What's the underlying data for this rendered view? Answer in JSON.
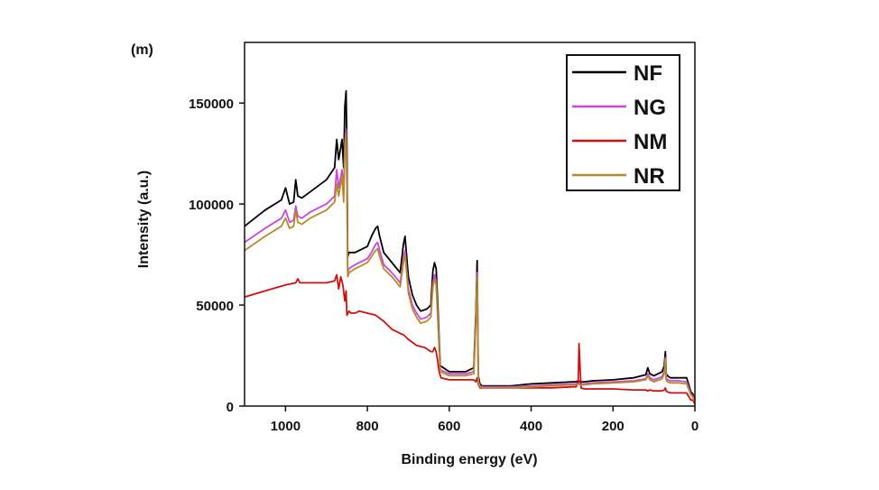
{
  "panel_label": "(m)",
  "chart_data": {
    "type": "line",
    "xlabel": "Binding energy (eV)",
    "ylabel": "Intensity (a.u.)",
    "xlim": [
      1100,
      0
    ],
    "ylim": [
      0,
      180000
    ],
    "x_reversed": true,
    "x_ticks": [
      1000,
      800,
      600,
      400,
      200,
      0
    ],
    "y_ticks": [
      0,
      50000,
      100000,
      150000
    ],
    "grid": false,
    "legend_placement": "top-right",
    "series": [
      {
        "name": "NF",
        "color": "#000000",
        "x": [
          1100,
          1050,
          1010,
          1000,
          990,
          980,
          975,
          970,
          960,
          940,
          900,
          880,
          875,
          870,
          862,
          858,
          855,
          852,
          850,
          848,
          845,
          830,
          800,
          790,
          780,
          775,
          770,
          760,
          740,
          720,
          712,
          708,
          700,
          690,
          680,
          670,
          655,
          645,
          640,
          636,
          632,
          628,
          622,
          600,
          580,
          560,
          540,
          535,
          532,
          529,
          525,
          520,
          500,
          450,
          400,
          350,
          300,
          290,
          285,
          280,
          270,
          250,
          200,
          150,
          120,
          115,
          110,
          100,
          80,
          75,
          72,
          70,
          67,
          60,
          40,
          20,
          10,
          5,
          0
        ],
        "y": [
          89000,
          97000,
          102000,
          108000,
          100000,
          101000,
          112000,
          104000,
          103000,
          106000,
          112000,
          118000,
          132000,
          122000,
          132000,
          118000,
          148000,
          156000,
          128000,
          74000,
          76000,
          76000,
          79000,
          84000,
          88000,
          89000,
          84000,
          76000,
          71000,
          66000,
          80000,
          84000,
          64000,
          55000,
          50000,
          47000,
          48000,
          50000,
          67000,
          71000,
          68000,
          50000,
          20000,
          17000,
          17000,
          17000,
          19000,
          46000,
          72000,
          15000,
          11000,
          10000,
          10000,
          10000,
          11000,
          11500,
          12000,
          12000,
          12500,
          12000,
          12000,
          12500,
          13000,
          14000,
          15500,
          19000,
          16000,
          15000,
          17000,
          20000,
          27000,
          16000,
          15000,
          14000,
          14000,
          14000,
          7000,
          6000,
          3000
        ]
      },
      {
        "name": "NG",
        "color": "#cc44dd",
        "x": [
          1100,
          1050,
          1010,
          1000,
          990,
          980,
          975,
          970,
          960,
          940,
          900,
          880,
          875,
          870,
          862,
          858,
          855,
          852,
          850,
          848,
          845,
          830,
          800,
          790,
          780,
          775,
          770,
          760,
          740,
          720,
          712,
          708,
          700,
          690,
          680,
          670,
          655,
          645,
          640,
          636,
          632,
          628,
          622,
          600,
          580,
          560,
          540,
          535,
          532,
          529,
          525,
          520,
          500,
          450,
          400,
          350,
          300,
          290,
          285,
          280,
          270,
          250,
          200,
          150,
          120,
          115,
          110,
          100,
          80,
          75,
          72,
          70,
          67,
          60,
          40,
          20,
          10,
          5,
          0
        ],
        "y": [
          81000,
          88000,
          93000,
          97000,
          91000,
          92000,
          99000,
          94000,
          93000,
          96000,
          100000,
          104000,
          117000,
          108000,
          117000,
          105000,
          130000,
          137000,
          112000,
          66000,
          68000,
          70000,
          73000,
          76000,
          80000,
          81000,
          77000,
          70000,
          66000,
          61000,
          73000,
          77000,
          58000,
          50000,
          46000,
          43000,
          44000,
          46000,
          61000,
          65000,
          62000,
          45000,
          18000,
          16000,
          16000,
          16000,
          17000,
          42000,
          66000,
          13000,
          10000,
          9500,
          9500,
          9500,
          10000,
          10500,
          11000,
          11000,
          11500,
          11000,
          11000,
          11500,
          12000,
          12500,
          13500,
          16000,
          14000,
          13000,
          14500,
          17000,
          24000,
          14000,
          13000,
          12500,
          12500,
          12000,
          6000,
          5000,
          2500
        ]
      },
      {
        "name": "NM",
        "color": "#cc1111",
        "x": [
          1100,
          1050,
          1000,
          975,
          970,
          965,
          950,
          900,
          880,
          875,
          870,
          865,
          860,
          855,
          852,
          850,
          845,
          840,
          830,
          820,
          800,
          780,
          760,
          740,
          720,
          710,
          700,
          680,
          660,
          645,
          640,
          636,
          632,
          628,
          625,
          620,
          600,
          580,
          560,
          540,
          535,
          532,
          529,
          525,
          500,
          450,
          400,
          350,
          300,
          290,
          285,
          283,
          281,
          278,
          270,
          250,
          200,
          150,
          120,
          115,
          110,
          100,
          80,
          75,
          72,
          70,
          67,
          60,
          40,
          20,
          10,
          5,
          0
        ],
        "y": [
          54000,
          57000,
          60000,
          61000,
          63000,
          61000,
          61000,
          61000,
          62000,
          65000,
          58000,
          64000,
          60000,
          52000,
          57000,
          45000,
          47000,
          46000,
          46000,
          47000,
          46000,
          45000,
          42000,
          38000,
          36000,
          35000,
          33000,
          30000,
          29000,
          27000,
          27000,
          29000,
          27000,
          22000,
          17000,
          14000,
          13000,
          13000,
          13000,
          13000,
          12000,
          14000,
          11000,
          9000,
          9000,
          9000,
          9000,
          9000,
          9500,
          9500,
          12000,
          31000,
          22000,
          9000,
          8500,
          8500,
          8500,
          8000,
          8000,
          7500,
          8000,
          7500,
          7500,
          8000,
          9000,
          7500,
          7000,
          6500,
          6500,
          6500,
          3000,
          3000,
          1000
        ]
      },
      {
        "name": "NR",
        "color": "#b58a2a",
        "x": [
          1100,
          1050,
          1010,
          1000,
          990,
          980,
          975,
          970,
          960,
          940,
          900,
          880,
          875,
          870,
          862,
          858,
          855,
          852,
          850,
          848,
          845,
          830,
          800,
          790,
          780,
          775,
          770,
          760,
          740,
          720,
          712,
          708,
          700,
          690,
          680,
          670,
          655,
          645,
          640,
          636,
          632,
          628,
          622,
          600,
          580,
          560,
          540,
          535,
          532,
          529,
          525,
          520,
          500,
          450,
          400,
          350,
          300,
          290,
          285,
          280,
          270,
          250,
          200,
          150,
          120,
          115,
          110,
          100,
          80,
          75,
          72,
          70,
          67,
          60,
          40,
          20,
          10,
          5,
          0
        ],
        "y": [
          77000,
          84000,
          89000,
          93000,
          88000,
          89000,
          97000,
          91000,
          90000,
          93000,
          97000,
          101000,
          110000,
          104000,
          114000,
          101000,
          126000,
          135000,
          108000,
          64000,
          66000,
          68000,
          71000,
          74000,
          77000,
          78000,
          74000,
          68000,
          64000,
          59000,
          71000,
          75000,
          56000,
          48000,
          44000,
          41000,
          42000,
          44000,
          59000,
          63000,
          60000,
          43000,
          17000,
          15000,
          15000,
          15000,
          16000,
          41000,
          64000,
          12000,
          9500,
          9000,
          9000,
          9000,
          9500,
          10000,
          10500,
          10500,
          11000,
          10500,
          10500,
          11000,
          11500,
          12000,
          13000,
          15000,
          13000,
          12000,
          13500,
          16000,
          23000,
          13000,
          12000,
          11500,
          11500,
          11000,
          5500,
          4500,
          2000
        ]
      }
    ]
  }
}
